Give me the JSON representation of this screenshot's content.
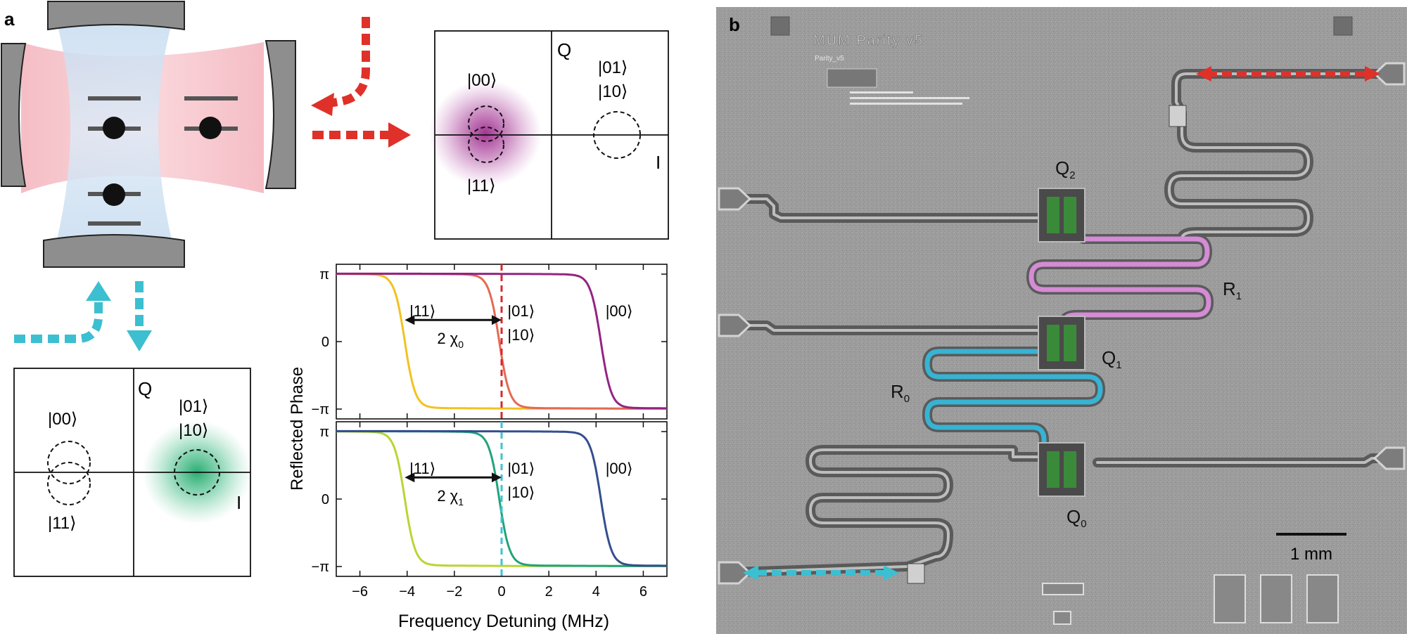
{
  "panel_a": {
    "label": "a",
    "iq_top": {
      "q_label": "Q",
      "i_label": "I",
      "state_00": "|00⟩",
      "state_01": "|01⟩",
      "state_10": "|10⟩",
      "state_11": "|11⟩",
      "blob_color": "#9c2a8c"
    },
    "iq_bottom": {
      "q_label": "Q",
      "i_label": "I",
      "state_00": "|00⟩",
      "state_01": "|01⟩",
      "state_10": "|10⟩",
      "state_11": "|11⟩",
      "blob_color": "#1fa86a"
    },
    "arrow_red": "#e0302a",
    "arrow_cyan": "#3cbfd0"
  },
  "chart_data": [
    {
      "type": "line",
      "xlabel": "Frequency Detuning (MHz)",
      "ylabel": "Reflected Phase",
      "xlim": [
        -7,
        7
      ],
      "ylim": [
        -3.6,
        3.6
      ],
      "xticks": [
        "−6",
        "−4",
        "−2",
        "0",
        "2",
        "4",
        "6"
      ],
      "yticks": [
        "π",
        "0",
        "−π"
      ],
      "vline": {
        "x": 0,
        "color": "#d8282a",
        "style": "dashed"
      },
      "annotation": {
        "text": "2 χ",
        "subscript": "0",
        "x_from": -4.1,
        "x_to": 0
      },
      "labels": {
        "s11": "|11⟩",
        "s01": "|01⟩",
        "s10": "|10⟩",
        "s00": "|00⟩"
      },
      "series": [
        {
          "state": "|11⟩",
          "center": -4.1,
          "color": "#f2c21f"
        },
        {
          "state": "|01⟩ |10⟩",
          "center": -0.1,
          "color": "#e46a52"
        },
        {
          "state": "|00⟩",
          "center": 4.2,
          "color": "#932483"
        }
      ]
    },
    {
      "type": "line",
      "xlabel": "Frequency Detuning (MHz)",
      "ylabel": "Reflected Phase",
      "xlim": [
        -7,
        7
      ],
      "ylim": [
        -3.6,
        3.6
      ],
      "xticks": [
        "−6",
        "−4",
        "−2",
        "0",
        "2",
        "4",
        "6"
      ],
      "yticks": [
        "π",
        "0",
        "−π"
      ],
      "vline": {
        "x": 0,
        "color": "#3ec3d2",
        "style": "dashed"
      },
      "annotation": {
        "text": "2 χ",
        "subscript": "1",
        "x_from": -4.1,
        "x_to": 0
      },
      "labels": {
        "s11": "|11⟩",
        "s01": "|01⟩",
        "s10": "|10⟩",
        "s00": "|00⟩"
      },
      "series": [
        {
          "state": "|11⟩",
          "center": -4.1,
          "color": "#b9d534"
        },
        {
          "state": "|01⟩ |10⟩",
          "center": -0.1,
          "color": "#22a37d"
        },
        {
          "state": "|00⟩",
          "center": 4.2,
          "color": "#344e8f"
        }
      ]
    }
  ],
  "panel_b": {
    "label": "b",
    "chip_title": "MUM Parity v5",
    "chip_subtitle": "Parity_v5",
    "q2": "Q",
    "q2_sub": "2",
    "q1": "Q",
    "q1_sub": "1",
    "q0": "Q",
    "q0_sub": "0",
    "r1": "R",
    "r1_sub": "1",
    "r0": "R",
    "r0_sub": "0",
    "scale_label": "1 mm",
    "resonator_r1_color": "#d58bd5",
    "resonator_r0_color": "#37b3d4",
    "qubit_pad_color": "#3b8a3a",
    "arrow_red": "#e0302a",
    "arrow_cyan": "#3cbfd0"
  }
}
